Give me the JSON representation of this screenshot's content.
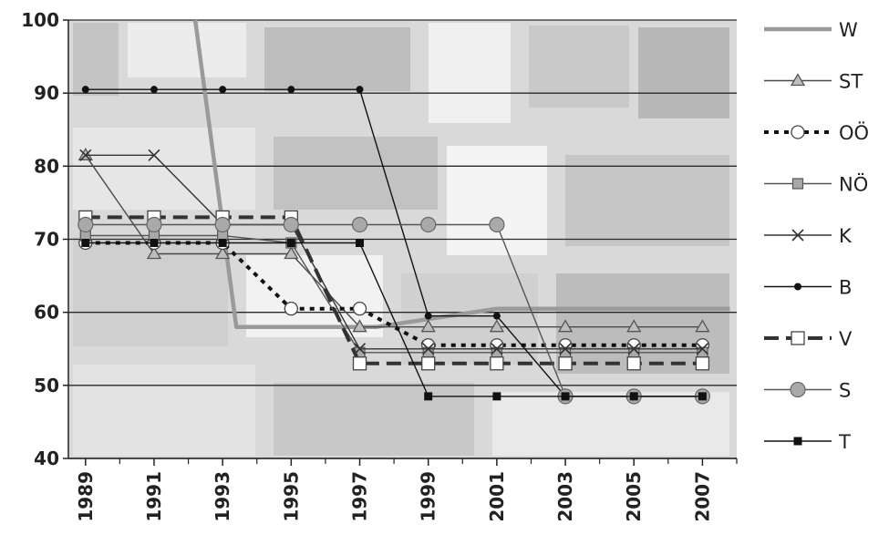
{
  "chart_data": {
    "type": "line",
    "title": "",
    "xlabel": "",
    "ylabel": "",
    "ylim": [
      40,
      100
    ],
    "xlim": [
      1988.5,
      2008
    ],
    "xticks": [
      1989,
      1991,
      1993,
      1995,
      1997,
      1999,
      2001,
      2003,
      2005,
      2007
    ],
    "xtick_labels": [
      "1989",
      "1991",
      "1993",
      "1995",
      "1997",
      "1999",
      "2001",
      "2003",
      "2005",
      "2007"
    ],
    "yticks": [
      40,
      50,
      60,
      70,
      80,
      90,
      100
    ],
    "ytick_labels": [
      "40",
      "50",
      "60",
      "70",
      "80",
      "90",
      "100"
    ],
    "grid": "horizontal",
    "legend_position": "right",
    "series": [
      {
        "name": "W",
        "color": "#9a9a9a",
        "style": "thick",
        "marker": "none",
        "points": [
          [
            1992.2,
            100
          ],
          [
            1993.4,
            58
          ],
          [
            1997.5,
            58
          ],
          [
            2001,
            60.5
          ],
          [
            2007.8,
            60.5
          ]
        ]
      },
      {
        "name": "ST",
        "color": "#4a4a4a",
        "style": "solid",
        "marker": "triangle",
        "points": [
          [
            1989,
            81.5
          ],
          [
            1991,
            68
          ],
          [
            1993,
            68
          ],
          [
            1995,
            68
          ],
          [
            1997,
            58
          ],
          [
            1999,
            58
          ],
          [
            2001,
            58
          ],
          [
            2003,
            58
          ],
          [
            2005,
            58
          ],
          [
            2007,
            58
          ]
        ]
      },
      {
        "name": "OÖ",
        "color": "#111111",
        "style": "dotted-thick",
        "marker": "circle-open",
        "points": [
          [
            1989,
            69.5
          ],
          [
            1991,
            69.5
          ],
          [
            1993,
            69.5
          ],
          [
            1995,
            60.5
          ],
          [
            1997,
            60.5
          ],
          [
            1999,
            55.5
          ],
          [
            2001,
            55.5
          ],
          [
            2003,
            55.5
          ],
          [
            2005,
            55.5
          ],
          [
            2007,
            55.5
          ]
        ]
      },
      {
        "name": "NÖ",
        "color": "#555555",
        "style": "solid",
        "marker": "square-gray",
        "points": [
          [
            1989,
            70.5
          ],
          [
            1991,
            70.5
          ],
          [
            1993,
            70.5
          ],
          [
            1995,
            69.5
          ],
          [
            1997,
            54.5
          ],
          [
            1999,
            54.5
          ],
          [
            2001,
            54.5
          ],
          [
            2003,
            54.5
          ],
          [
            2005,
            54.5
          ],
          [
            2007,
            54.5
          ]
        ]
      },
      {
        "name": "K",
        "color": "#333333",
        "style": "solid",
        "marker": "x",
        "points": [
          [
            1989,
            81.5
          ],
          [
            1991,
            81.5
          ],
          [
            1993,
            72
          ],
          [
            1995,
            72
          ],
          [
            1997,
            55
          ],
          [
            1999,
            55
          ],
          [
            2001,
            55
          ],
          [
            2003,
            55
          ],
          [
            2005,
            55
          ],
          [
            2007,
            55
          ]
        ]
      },
      {
        "name": "B",
        "color": "#111111",
        "style": "solid",
        "marker": "dot",
        "points": [
          [
            1989,
            90.5
          ],
          [
            1991,
            90.5
          ],
          [
            1993,
            90.5
          ],
          [
            1995,
            90.5
          ],
          [
            1997,
            90.5
          ],
          [
            1999,
            59.5
          ],
          [
            2001,
            59.5
          ],
          [
            2003,
            48.5
          ],
          [
            2005,
            48.5
          ],
          [
            2007,
            48.5
          ]
        ]
      },
      {
        "name": "V",
        "color": "#333333",
        "style": "dashed-thick",
        "marker": "square-open",
        "points": [
          [
            1989,
            73
          ],
          [
            1991,
            73
          ],
          [
            1993,
            73
          ],
          [
            1995,
            73
          ],
          [
            1997,
            53
          ],
          [
            1999,
            53
          ],
          [
            2001,
            53
          ],
          [
            2003,
            53
          ],
          [
            2005,
            53
          ],
          [
            2007,
            53
          ]
        ]
      },
      {
        "name": "S",
        "color": "#555555",
        "style": "solid",
        "marker": "circle-gray",
        "points": [
          [
            1989,
            72
          ],
          [
            1991,
            72
          ],
          [
            1993,
            72
          ],
          [
            1995,
            72
          ],
          [
            1997,
            72
          ],
          [
            1999,
            72
          ],
          [
            2001,
            72
          ],
          [
            2003,
            48.5
          ],
          [
            2005,
            48.5
          ],
          [
            2007,
            48.5
          ]
        ]
      },
      {
        "name": "T",
        "color": "#111111",
        "style": "solid",
        "marker": "square-black",
        "points": [
          [
            1989,
            69.5
          ],
          [
            1991,
            69.5
          ],
          [
            1993,
            69.5
          ],
          [
            1995,
            69.5
          ],
          [
            1997,
            69.5
          ],
          [
            1999,
            48.5
          ],
          [
            2001,
            48.5
          ],
          [
            2003,
            48.5
          ],
          [
            2005,
            48.5
          ],
          [
            2007,
            48.5
          ]
        ]
      }
    ]
  }
}
